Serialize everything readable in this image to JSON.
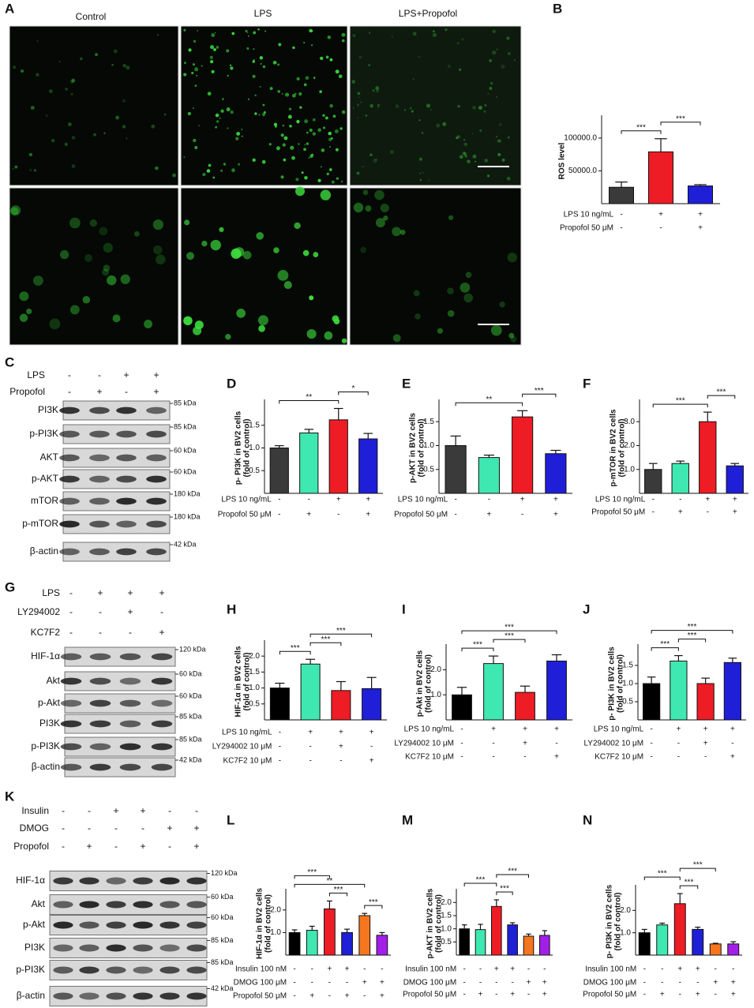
{
  "images": {
    "label": "A",
    "columns": [
      "Control",
      "LPS",
      "LPS+Propofol"
    ]
  },
  "blots": [
    {
      "label": "C",
      "conditions": [
        {
          "label": "LPS",
          "signs": [
            "-",
            "-",
            "+",
            "+"
          ]
        },
        {
          "label": "Propofol",
          "signs": [
            "-",
            "+",
            "-",
            "+"
          ]
        }
      ],
      "bands": [
        {
          "name": "PI3K",
          "size": "85 kDa"
        },
        {
          "name": "p-PI3K",
          "size": "85 kDa"
        },
        {
          "name": "AKT",
          "size": "60 kDa"
        },
        {
          "name": "p-AKT",
          "size": "60 kDa"
        },
        {
          "name": "mTOR",
          "size": "180 kDa"
        },
        {
          "name": "p-mTOR",
          "size": "180 kDa"
        },
        {
          "name": "β-actin",
          "size": "42 kDa"
        }
      ]
    },
    {
      "label": "G",
      "conditions": [
        {
          "label": "LPS",
          "signs": [
            "-",
            "+",
            "+",
            "+"
          ]
        },
        {
          "label": "LY294002",
          "signs": [
            "-",
            "-",
            "+",
            "-"
          ]
        },
        {
          "label": "KC7F2",
          "signs": [
            "-",
            "-",
            "-",
            "+"
          ]
        }
      ],
      "bands": [
        {
          "name": "HIF-1α",
          "size": "120 kDa"
        },
        {
          "name": "Akt",
          "size": "60 kDa"
        },
        {
          "name": "p-Akt",
          "size": "60 kDa"
        },
        {
          "name": "PI3K",
          "size": "85 kDa"
        },
        {
          "name": "p-PI3K",
          "size": "85 kDa"
        },
        {
          "name": "β-actin",
          "size": "42 kDa"
        }
      ]
    },
    {
      "label": "K",
      "conditions": [
        {
          "label": "Insulin",
          "signs": [
            "-",
            "-",
            "+",
            "+",
            "-",
            "-"
          ]
        },
        {
          "label": "DMOG",
          "signs": [
            "-",
            "-",
            "-",
            "-",
            "+",
            "+"
          ]
        },
        {
          "label": "Propofol",
          "signs": [
            "-",
            "+",
            "-",
            "+",
            "-",
            "+"
          ]
        }
      ],
      "bands": [
        {
          "name": "HIF-1α",
          "size": "120 kDa"
        },
        {
          "name": "Akt",
          "size": "60 kDa"
        },
        {
          "name": "p-Akt",
          "size": "60 kDa"
        },
        {
          "name": "PI3K",
          "size": "85 kDa"
        },
        {
          "name": "p-PI3K",
          "size": "85 kDa"
        },
        {
          "name": "β-actin",
          "size": "42 kDa"
        }
      ]
    }
  ],
  "chart_data": [
    {
      "label": "B",
      "type": "bar",
      "ylabel": [
        "ROS level"
      ],
      "values": [
        25000,
        79000,
        27000
      ],
      "errors": [
        8000,
        20000,
        2000
      ],
      "colors": [
        "#3a3a3a",
        "#ee1c24",
        "#1f1fd8"
      ],
      "ylim": [
        0,
        130000
      ],
      "yticks": [
        {
          "value": 50000,
          "label": "50000.0"
        },
        {
          "value": 100000,
          "label": "100000.0"
        }
      ],
      "conditions": [
        {
          "label": "LPS 10 ng/mL",
          "signs": [
            "-",
            "+",
            "+"
          ]
        },
        {
          "label": "Propofol 50 μM",
          "signs": [
            "-",
            "-",
            "+"
          ]
        }
      ],
      "significance": [
        {
          "from": 0,
          "to": 1,
          "label": "***"
        },
        {
          "from": 1,
          "to": 2,
          "label": "***"
        }
      ]
    },
    {
      "label": "D",
      "type": "bar",
      "ylabel": [
        "p- PI3K in BV2 cells",
        "(fold of control)"
      ],
      "values": [
        1.0,
        1.33,
        1.62,
        1.2
      ],
      "errors": [
        0.05,
        0.08,
        0.25,
        0.12
      ],
      "colors": [
        "#3a3a3a",
        "#3fe8b0",
        "#ee1c24",
        "#1f1fd8"
      ],
      "ylim": [
        0,
        2.0
      ],
      "yticks": [
        0.5,
        {
          "value": 1,
          "label": "1.0"
        },
        1.5
      ],
      "conditions": [
        {
          "label": "LPS 10 ng/mL",
          "signs": [
            "-",
            "-",
            "+",
            "+"
          ]
        },
        {
          "label": "Propofol 50 μM",
          "signs": [
            "-",
            "+",
            "-",
            "+"
          ]
        }
      ],
      "significance": [
        {
          "from": 0,
          "to": 2,
          "label": "**"
        },
        {
          "from": 2,
          "to": 3,
          "label": "*"
        }
      ]
    },
    {
      "label": "E",
      "type": "bar",
      "ylabel": [
        "p-AKT in BV2 cells",
        "(fold of control)"
      ],
      "values": [
        1.0,
        0.75,
        1.6,
        0.83
      ],
      "errors": [
        0.2,
        0.05,
        0.13,
        0.07
      ],
      "colors": [
        "#3a3a3a",
        "#3fe8b0",
        "#ee1c24",
        "#1f1fd8"
      ],
      "ylim": [
        0,
        1.9
      ],
      "yticks": [
        0.5,
        {
          "value": 1,
          "label": "1.0"
        },
        1.5
      ],
      "conditions": [
        {
          "label": "LPS 10 ng/mL",
          "signs": [
            "-",
            "-",
            "+",
            "+"
          ]
        },
        {
          "label": "Propofol 50 μM",
          "signs": [
            "-",
            "+",
            "-",
            "+"
          ]
        }
      ],
      "significance": [
        {
          "from": 0,
          "to": 2,
          "label": "**"
        },
        {
          "from": 2,
          "to": 3,
          "label": "***"
        }
      ]
    },
    {
      "label": "F",
      "type": "bar",
      "ylabel": [
        "p-mTOR in BV2 cells",
        "(fold of control)"
      ],
      "values": [
        1.0,
        1.25,
        3.0,
        1.15
      ],
      "errors": [
        0.25,
        0.1,
        0.4,
        0.1
      ],
      "colors": [
        "#3a3a3a",
        "#3fe8b0",
        "#ee1c24",
        "#1f1fd8"
      ],
      "ylim": [
        0,
        3.8
      ],
      "yticks": [
        {
          "value": 1,
          "label": "1.0"
        },
        {
          "value": 2,
          "label": "2.0"
        },
        {
          "value": 3,
          "label": "3.0"
        }
      ],
      "conditions": [
        {
          "label": "LPS 10 ng/mL",
          "signs": [
            "-",
            "-",
            "+",
            "+"
          ]
        },
        {
          "label": "Propofol 50 μM",
          "signs": [
            "-",
            "+",
            "-",
            "+"
          ]
        }
      ],
      "significance": [
        {
          "from": 0,
          "to": 2,
          "label": "***"
        },
        {
          "from": 2,
          "to": 3,
          "label": "***"
        }
      ]
    },
    {
      "label": "H",
      "type": "bar",
      "ylabel": [
        "HIF-1α in BV2 cells",
        "(fold of control)"
      ],
      "values": [
        1.0,
        1.75,
        0.92,
        0.98
      ],
      "errors": [
        0.15,
        0.15,
        0.28,
        0.35
      ],
      "colors": [
        "#000000",
        "#3fe8b0",
        "#ee1c24",
        "#1f1fd8"
      ],
      "ylim": [
        0,
        2.4
      ],
      "yticks": [
        0.5,
        {
          "value": 1,
          "label": "1.0"
        },
        1.5,
        {
          "value": 2,
          "label": "2.0"
        }
      ],
      "conditions": [
        {
          "label": "LPS 10 ng/mL",
          "signs": [
            "-",
            "+",
            "+",
            "+"
          ]
        },
        {
          "label": "LY294002 10 μM",
          "signs": [
            "-",
            "-",
            "+",
            "-"
          ]
        },
        {
          "label": "KC7F2 10 μM",
          "signs": [
            "-",
            "-",
            "-",
            "+"
          ]
        }
      ],
      "significance": [
        {
          "from": 0,
          "to": 1,
          "label": "***"
        },
        {
          "from": 1,
          "to": 2,
          "label": "***"
        },
        {
          "from": 1,
          "to": 3,
          "label": "***"
        }
      ]
    },
    {
      "label": "I",
      "type": "bar",
      "ylabel": [
        "p-Akt in BV2 cells",
        "(fold of control)"
      ],
      "values": [
        1.0,
        2.25,
        1.1,
        2.35
      ],
      "errors": [
        0.3,
        0.3,
        0.25,
        0.25
      ],
      "colors": [
        "#000000",
        "#3fe8b0",
        "#ee1c24",
        "#1f1fd8"
      ],
      "ylim": [
        0,
        2.9
      ],
      "yticks": [
        {
          "value": 1,
          "label": "1.0"
        },
        {
          "value": 2,
          "label": "2.0"
        }
      ],
      "conditions": [
        {
          "label": "LPS 10 ng/mL",
          "signs": [
            "-",
            "+",
            "+",
            "+"
          ]
        },
        {
          "label": "LY294002 10 μM",
          "signs": [
            "-",
            "-",
            "+",
            "-"
          ]
        },
        {
          "label": "KC7F2 10 μM",
          "signs": [
            "-",
            "-",
            "-",
            "+"
          ]
        }
      ],
      "significance": [
        {
          "from": 0,
          "to": 1,
          "label": "***"
        },
        {
          "from": 1,
          "to": 2,
          "label": "***"
        },
        {
          "from": 0,
          "to": 3,
          "label": "***"
        }
      ]
    },
    {
      "label": "J",
      "type": "bar",
      "ylabel": [
        "p- PI3K in BV2 cells",
        "(fold of control)"
      ],
      "values": [
        1.0,
        1.62,
        1.0,
        1.58
      ],
      "errors": [
        0.18,
        0.15,
        0.15,
        0.12
      ],
      "colors": [
        "#000000",
        "#3fe8b0",
        "#ee1c24",
        "#1f1fd8"
      ],
      "ylim": [
        0,
        2.0
      ],
      "yticks": [
        0.5,
        {
          "value": 1,
          "label": "1.0"
        },
        1.5
      ],
      "conditions": [
        {
          "label": "LPS 10 ng/mL",
          "signs": [
            "-",
            "+",
            "+",
            "+"
          ]
        },
        {
          "label": "LY294002 10 μM",
          "signs": [
            "-",
            "-",
            "+",
            "-"
          ]
        },
        {
          "label": "KC7F2 10 μM",
          "signs": [
            "-",
            "-",
            "-",
            "+"
          ]
        }
      ],
      "significance": [
        {
          "from": 0,
          "to": 1,
          "label": "***"
        },
        {
          "from": 1,
          "to": 2,
          "label": "***"
        },
        {
          "from": 0,
          "to": 3,
          "label": "***"
        }
      ]
    },
    {
      "label": "L",
      "type": "bar",
      "ylabel": [
        "HIF-1α in BV2 cells",
        "(fold of control)"
      ],
      "values": [
        1.0,
        1.1,
        2.05,
        1.0,
        1.75,
        0.88
      ],
      "errors": [
        0.12,
        0.18,
        0.35,
        0.15,
        0.1,
        0.12
      ],
      "colors": [
        "#000000",
        "#3fe8b0",
        "#ee1c24",
        "#1f1fd8",
        "#f5761e",
        "#a21fe8"
      ],
      "ylim": [
        0,
        2.8
      ],
      "yticks": [
        {
          "value": 1,
          "label": "1.0"
        },
        {
          "value": 2,
          "label": "2.0"
        }
      ],
      "conditions": [
        {
          "label": "Insulin 100 nM",
          "signs": [
            "-",
            "-",
            "+",
            "+",
            "-",
            "-"
          ]
        },
        {
          "label": "DMOG 100 μM",
          "signs": [
            "-",
            "-",
            "-",
            "-",
            "+",
            "+"
          ]
        },
        {
          "label": "Propofol 50 μM",
          "signs": [
            "-",
            "+",
            "-",
            "+",
            "-",
            "+"
          ]
        }
      ],
      "significance": [
        {
          "from": 2,
          "to": 3,
          "label": "***"
        },
        {
          "from": 4,
          "to": 5,
          "label": "***"
        },
        {
          "from": 0,
          "to": 4,
          "label": "**"
        },
        {
          "from": 0,
          "to": 2,
          "label": "***"
        }
      ]
    },
    {
      "label": "M",
      "type": "bar",
      "ylabel": [
        "p-AKT in BV2 cells",
        "(fold of control)"
      ],
      "values": [
        1.0,
        0.97,
        1.85,
        1.15,
        0.72,
        0.75
      ],
      "errors": [
        0.15,
        0.2,
        0.25,
        0.08,
        0.08,
        0.18
      ],
      "colors": [
        "#000000",
        "#3fe8b0",
        "#ee1c24",
        "#1f1fd8",
        "#f5761e",
        "#a21fe8"
      ],
      "ylim": [
        0,
        2.4
      ],
      "yticks": [
        0.5,
        {
          "value": 1,
          "label": "1.0"
        },
        1.5,
        {
          "value": 2,
          "label": "2.0"
        }
      ],
      "conditions": [
        {
          "label": "Insulin 100 nM",
          "signs": [
            "-",
            "-",
            "+",
            "+",
            "-",
            "-"
          ]
        },
        {
          "label": "DMOG 100 μM",
          "signs": [
            "-",
            "-",
            "-",
            "-",
            "+",
            "+"
          ]
        },
        {
          "label": "Propofol 50 μM",
          "signs": [
            "-",
            "+",
            "-",
            "+",
            "-",
            "+"
          ]
        }
      ],
      "significance": [
        {
          "from": 2,
          "to": 3,
          "label": "***"
        },
        {
          "from": 0,
          "to": 2,
          "label": "***"
        },
        {
          "from": 2,
          "to": 4,
          "label": "***"
        }
      ]
    },
    {
      "label": "N",
      "type": "bar",
      "ylabel": [
        "p- PI3K in BV2 cells",
        "(fold of control)"
      ],
      "values": [
        1.0,
        1.35,
        2.3,
        1.15,
        0.5,
        0.5
      ],
      "errors": [
        0.15,
        0.08,
        0.45,
        0.1,
        0.03,
        0.1
      ],
      "colors": [
        "#000000",
        "#3fe8b0",
        "#ee1c24",
        "#1f1fd8",
        "#f5761e",
        "#a21fe8"
      ],
      "ylim": [
        0,
        3.0
      ],
      "yticks": [
        {
          "value": 1,
          "label": "1.0"
        },
        {
          "value": 2,
          "label": "2.0"
        }
      ],
      "conditions": [
        {
          "label": "Insulin 100 nM",
          "signs": [
            "-",
            "-",
            "+",
            "+",
            "-",
            "-"
          ]
        },
        {
          "label": "DMOG 100 μM",
          "signs": [
            "-",
            "-",
            "-",
            "-",
            "+",
            "+"
          ]
        },
        {
          "label": "Propofol 50 μM",
          "signs": [
            "-",
            "+",
            "-",
            "+",
            "-",
            "+"
          ]
        }
      ],
      "significance": [
        {
          "from": 2,
          "to": 3,
          "label": "***"
        },
        {
          "from": 0,
          "to": 2,
          "label": "***"
        },
        {
          "from": 2,
          "to": 4,
          "label": "***"
        }
      ]
    }
  ]
}
